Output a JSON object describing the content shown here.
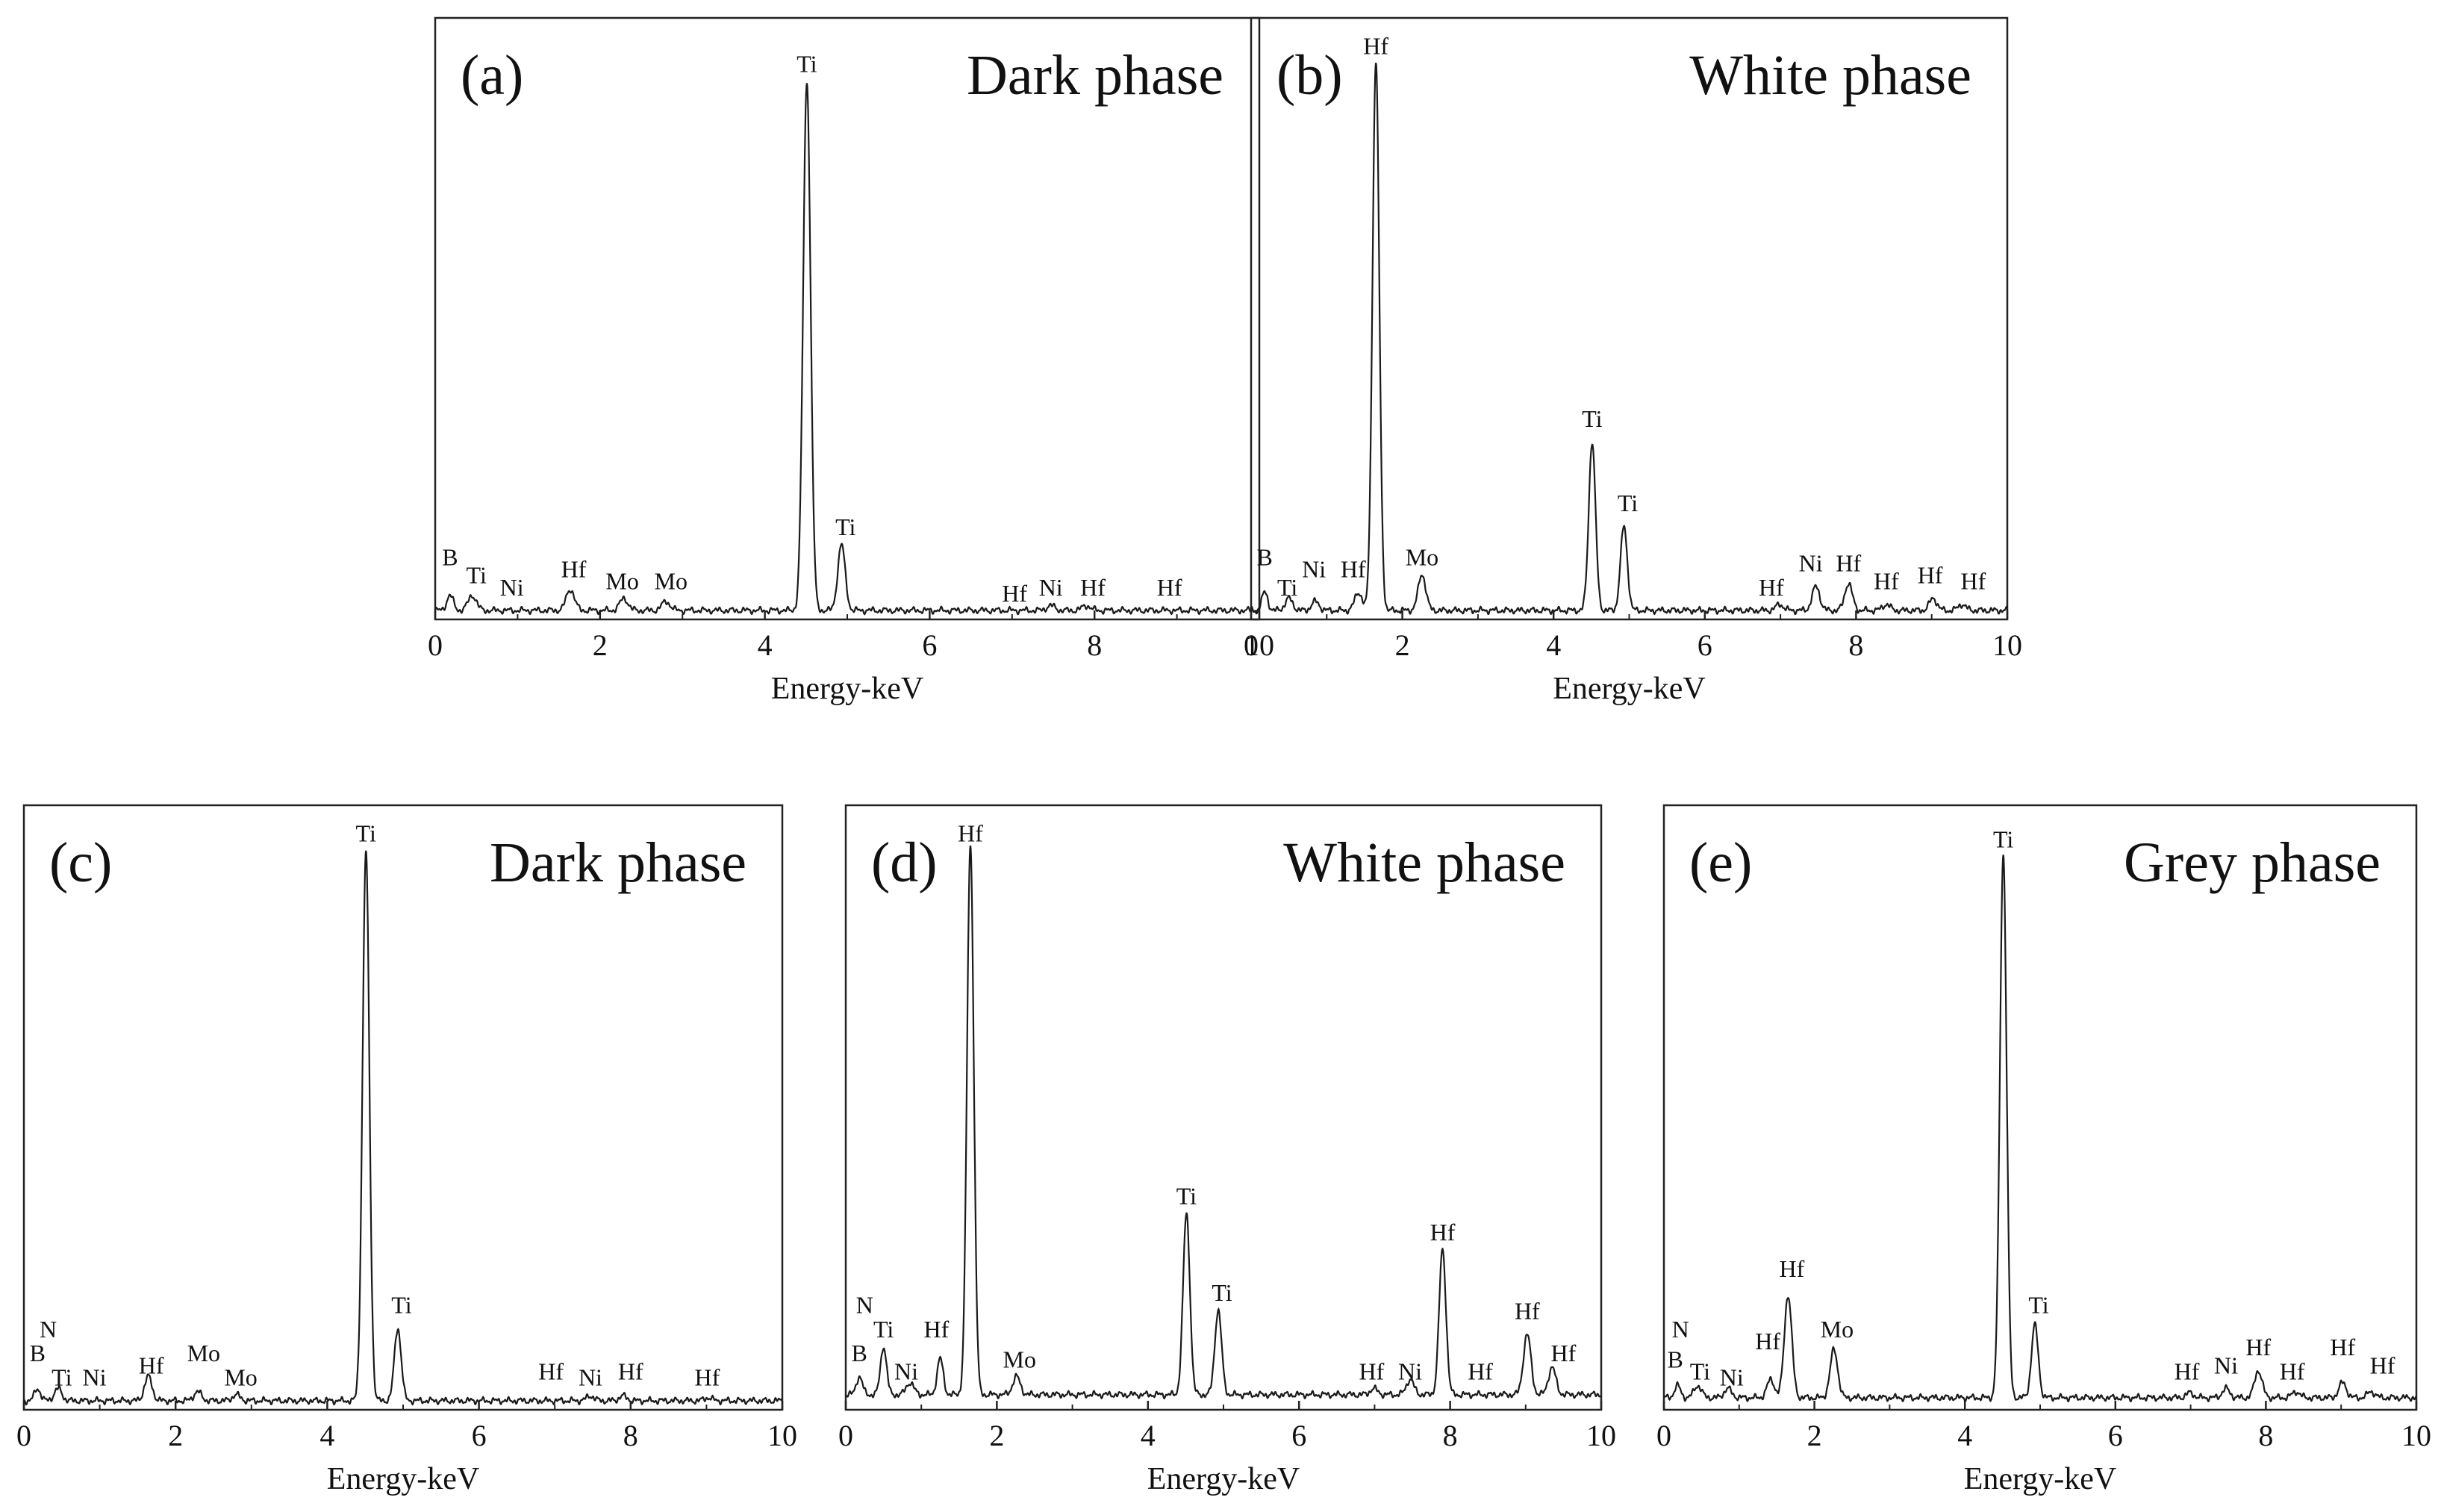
{
  "chart_data": [
    {
      "type": "line",
      "panel_label": "(a)",
      "title": "Dark phase",
      "xlabel": "Energy-keV",
      "ylabel": "",
      "xlim": [
        0,
        10
      ],
      "xticks": [
        "0",
        "2",
        "4",
        "6",
        "8",
        "10"
      ],
      "ylim": [
        0,
        100
      ],
      "grid": false,
      "baseline": 1.5,
      "peaks": [
        {
          "x": 0.18,
          "y": 2.5,
          "w": 0.04
        },
        {
          "x": 0.45,
          "y": 2.5,
          "w": 0.05
        },
        {
          "x": 1.64,
          "y": 3.5,
          "w": 0.05
        },
        {
          "x": 2.29,
          "y": 2.0,
          "w": 0.05
        },
        {
          "x": 2.8,
          "y": 1.5,
          "w": 0.05
        },
        {
          "x": 4.51,
          "y": 88.0,
          "w": 0.045
        },
        {
          "x": 4.93,
          "y": 11.0,
          "w": 0.045
        },
        {
          "x": 7.47,
          "y": 0.8,
          "w": 0.05
        },
        {
          "x": 7.9,
          "y": 0.8,
          "w": 0.05
        }
      ],
      "annotations": [
        {
          "text": "Ti",
          "x": 4.51,
          "y": 91
        },
        {
          "text": "Ti",
          "x": 4.98,
          "y": 14
        },
        {
          "text": "B",
          "x": 0.18,
          "y": 9
        },
        {
          "text": "Ti",
          "x": 0.5,
          "y": 6
        },
        {
          "text": "Ni",
          "x": 0.93,
          "y": 4
        },
        {
          "text": "Hf",
          "x": 1.68,
          "y": 7
        },
        {
          "text": "Mo",
          "x": 2.27,
          "y": 5
        },
        {
          "text": "Mo",
          "x": 2.86,
          "y": 5
        },
        {
          "text": "Hf",
          "x": 7.03,
          "y": 3
        },
        {
          "text": "Ni",
          "x": 7.47,
          "y": 4
        },
        {
          "text": "Hf",
          "x": 7.98,
          "y": 4
        },
        {
          "text": "Hf",
          "x": 8.91,
          "y": 4
        }
      ]
    },
    {
      "type": "line",
      "panel_label": "(b)",
      "title": "White phase",
      "xlabel": "Energy-keV",
      "ylabel": "",
      "xlim": [
        0,
        10
      ],
      "xticks": [
        "0",
        "2",
        "4",
        "6",
        "8",
        "10"
      ],
      "ylim": [
        0,
        100
      ],
      "grid": false,
      "baseline": 1.5,
      "peaks": [
        {
          "x": 0.18,
          "y": 3.0,
          "w": 0.04
        },
        {
          "x": 0.5,
          "y": 2.0,
          "w": 0.05
        },
        {
          "x": 0.85,
          "y": 1.5,
          "w": 0.05
        },
        {
          "x": 1.42,
          "y": 3.0,
          "w": 0.05
        },
        {
          "x": 1.65,
          "y": 91.0,
          "w": 0.045
        },
        {
          "x": 2.26,
          "y": 6.0,
          "w": 0.05
        },
        {
          "x": 4.51,
          "y": 28.0,
          "w": 0.045
        },
        {
          "x": 4.93,
          "y": 14.0,
          "w": 0.045
        },
        {
          "x": 6.99,
          "y": 1.0,
          "w": 0.05
        },
        {
          "x": 7.47,
          "y": 4.0,
          "w": 0.05
        },
        {
          "x": 7.9,
          "y": 4.5,
          "w": 0.05
        },
        {
          "x": 8.4,
          "y": 1.0,
          "w": 0.05
        },
        {
          "x": 9.02,
          "y": 2.0,
          "w": 0.05
        },
        {
          "x": 9.4,
          "y": 1.0,
          "w": 0.05
        }
      ],
      "annotations": [
        {
          "text": "Hf",
          "x": 1.65,
          "y": 94
        },
        {
          "text": "Ti",
          "x": 4.51,
          "y": 32
        },
        {
          "text": "Ti",
          "x": 4.98,
          "y": 18
        },
        {
          "text": "B",
          "x": 0.18,
          "y": 9
        },
        {
          "text": "Ti",
          "x": 0.48,
          "y": 4
        },
        {
          "text": "Ni",
          "x": 0.83,
          "y": 7
        },
        {
          "text": "Hf",
          "x": 1.35,
          "y": 7
        },
        {
          "text": "Mo",
          "x": 2.26,
          "y": 9
        },
        {
          "text": "Hf",
          "x": 6.88,
          "y": 4
        },
        {
          "text": "Ni",
          "x": 7.4,
          "y": 8
        },
        {
          "text": "Hf",
          "x": 7.9,
          "y": 8
        },
        {
          "text": "Hf",
          "x": 8.4,
          "y": 5
        },
        {
          "text": "Hf",
          "x": 8.98,
          "y": 6
        },
        {
          "text": "Hf",
          "x": 9.55,
          "y": 5
        }
      ]
    },
    {
      "type": "line",
      "panel_label": "(c)",
      "title": "Dark phase",
      "xlabel": "Energy-keV",
      "ylabel": "",
      "xlim": [
        0,
        10
      ],
      "xticks": [
        "0",
        "2",
        "4",
        "6",
        "8",
        "10"
      ],
      "ylim": [
        0,
        100
      ],
      "grid": false,
      "baseline": 1.5,
      "peaks": [
        {
          "x": 0.18,
          "y": 2.0,
          "w": 0.04
        },
        {
          "x": 0.45,
          "y": 2.0,
          "w": 0.05
        },
        {
          "x": 1.64,
          "y": 4.0,
          "w": 0.05
        },
        {
          "x": 2.29,
          "y": 1.5,
          "w": 0.05
        },
        {
          "x": 2.8,
          "y": 1.0,
          "w": 0.05
        },
        {
          "x": 4.51,
          "y": 91.0,
          "w": 0.045
        },
        {
          "x": 4.93,
          "y": 12.0,
          "w": 0.045
        },
        {
          "x": 7.47,
          "y": 0.8,
          "w": 0.05
        },
        {
          "x": 7.9,
          "y": 0.8,
          "w": 0.05
        },
        {
          "x": 9.02,
          "y": 0.5,
          "w": 0.05
        }
      ],
      "annotations": [
        {
          "text": "Ti",
          "x": 4.51,
          "y": 94
        },
        {
          "text": "Ti",
          "x": 4.98,
          "y": 16
        },
        {
          "text": "N",
          "x": 0.32,
          "y": 12
        },
        {
          "text": "B",
          "x": 0.18,
          "y": 8
        },
        {
          "text": "Ti",
          "x": 0.5,
          "y": 4
        },
        {
          "text": "Ni",
          "x": 0.93,
          "y": 4
        },
        {
          "text": "Hf",
          "x": 1.68,
          "y": 6
        },
        {
          "text": "Mo",
          "x": 2.37,
          "y": 8
        },
        {
          "text": "Mo",
          "x": 2.86,
          "y": 4
        },
        {
          "text": "Hf",
          "x": 6.95,
          "y": 5
        },
        {
          "text": "Ni",
          "x": 7.47,
          "y": 4
        },
        {
          "text": "Hf",
          "x": 8.0,
          "y": 5
        },
        {
          "text": "Hf",
          "x": 9.01,
          "y": 4
        }
      ]
    },
    {
      "type": "line",
      "panel_label": "(d)",
      "title": "White phase",
      "xlabel": "Energy-keV",
      "ylabel": "",
      "xlim": [
        0,
        10
      ],
      "xticks": [
        "0",
        "2",
        "4",
        "6",
        "8",
        "10"
      ],
      "ylim": [
        0,
        100
      ],
      "grid": false,
      "baseline": 2.5,
      "peaks": [
        {
          "x": 0.18,
          "y": 3.0,
          "w": 0.04
        },
        {
          "x": 0.5,
          "y": 8.0,
          "w": 0.04
        },
        {
          "x": 0.85,
          "y": 2.0,
          "w": 0.05
        },
        {
          "x": 1.25,
          "y": 6.0,
          "w": 0.04
        },
        {
          "x": 1.65,
          "y": 91.0,
          "w": 0.045
        },
        {
          "x": 2.26,
          "y": 3.0,
          "w": 0.05
        },
        {
          "x": 4.51,
          "y": 30.0,
          "w": 0.045
        },
        {
          "x": 4.93,
          "y": 14.0,
          "w": 0.045
        },
        {
          "x": 6.99,
          "y": 1.0,
          "w": 0.05
        },
        {
          "x": 7.47,
          "y": 2.5,
          "w": 0.05
        },
        {
          "x": 7.9,
          "y": 24.0,
          "w": 0.045
        },
        {
          "x": 9.02,
          "y": 10.0,
          "w": 0.05
        },
        {
          "x": 9.35,
          "y": 4.5,
          "w": 0.05
        }
      ],
      "annotations": [
        {
          "text": "Hf",
          "x": 1.65,
          "y": 94
        },
        {
          "text": "Ti",
          "x": 4.51,
          "y": 34
        },
        {
          "text": "Ti",
          "x": 4.98,
          "y": 18
        },
        {
          "text": "Hf",
          "x": 7.9,
          "y": 28
        },
        {
          "text": "Hf",
          "x": 9.02,
          "y": 15
        },
        {
          "text": "Hf",
          "x": 9.5,
          "y": 8
        },
        {
          "text": "N",
          "x": 0.25,
          "y": 16
        },
        {
          "text": "Ti",
          "x": 0.5,
          "y": 12
        },
        {
          "text": "B",
          "x": 0.18,
          "y": 8
        },
        {
          "text": "Ni",
          "x": 0.8,
          "y": 5
        },
        {
          "text": "Hf",
          "x": 1.2,
          "y": 12
        },
        {
          "text": "Mo",
          "x": 2.3,
          "y": 7
        },
        {
          "text": "Hf",
          "x": 6.96,
          "y": 5
        },
        {
          "text": "Ni",
          "x": 7.47,
          "y": 5
        },
        {
          "text": "Hf",
          "x": 8.4,
          "y": 5
        }
      ]
    },
    {
      "type": "line",
      "panel_label": "(e)",
      "title": "Grey phase",
      "xlabel": "Energy-keV",
      "ylabel": "",
      "xlim": [
        0,
        10
      ],
      "xticks": [
        "0",
        "2",
        "4",
        "6",
        "8",
        "10"
      ],
      "ylim": [
        0,
        100
      ],
      "grid": false,
      "baseline": 2.0,
      "peaks": [
        {
          "x": 0.18,
          "y": 2.0,
          "w": 0.04
        },
        {
          "x": 0.45,
          "y": 2.0,
          "w": 0.05
        },
        {
          "x": 0.85,
          "y": 1.5,
          "w": 0.05
        },
        {
          "x": 1.42,
          "y": 3.0,
          "w": 0.05
        },
        {
          "x": 1.65,
          "y": 17.0,
          "w": 0.05
        },
        {
          "x": 2.26,
          "y": 8.0,
          "w": 0.05
        },
        {
          "x": 4.51,
          "y": 90.0,
          "w": 0.045
        },
        {
          "x": 4.93,
          "y": 12.0,
          "w": 0.045
        },
        {
          "x": 6.99,
          "y": 0.8,
          "w": 0.05
        },
        {
          "x": 7.47,
          "y": 1.5,
          "w": 0.05
        },
        {
          "x": 7.9,
          "y": 4.5,
          "w": 0.05
        },
        {
          "x": 8.4,
          "y": 1.0,
          "w": 0.05
        },
        {
          "x": 9.02,
          "y": 2.5,
          "w": 0.05
        },
        {
          "x": 9.4,
          "y": 1.0,
          "w": 0.05
        }
      ],
      "annotations": [
        {
          "text": "Ti",
          "x": 4.51,
          "y": 93
        },
        {
          "text": "Ti",
          "x": 4.98,
          "y": 16
        },
        {
          "text": "Hf",
          "x": 1.7,
          "y": 22
        },
        {
          "text": "Mo",
          "x": 2.3,
          "y": 12
        },
        {
          "text": "N",
          "x": 0.22,
          "y": 12
        },
        {
          "text": "B",
          "x": 0.15,
          "y": 7
        },
        {
          "text": "Ti",
          "x": 0.48,
          "y": 5
        },
        {
          "text": "Ni",
          "x": 0.9,
          "y": 4
        },
        {
          "text": "Hf",
          "x": 1.38,
          "y": 10
        },
        {
          "text": "Hf",
          "x": 6.95,
          "y": 5
        },
        {
          "text": "Ni",
          "x": 7.47,
          "y": 6
        },
        {
          "text": "Hf",
          "x": 7.9,
          "y": 9
        },
        {
          "text": "Hf",
          "x": 8.35,
          "y": 5
        },
        {
          "text": "Hf",
          "x": 9.02,
          "y": 9
        },
        {
          "text": "Hf",
          "x": 9.55,
          "y": 6
        }
      ]
    }
  ]
}
